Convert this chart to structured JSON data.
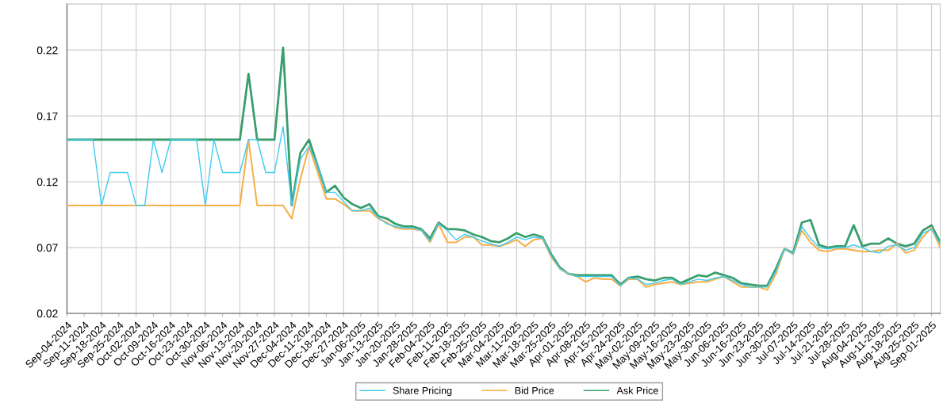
{
  "chart_data": {
    "type": "line",
    "categories": [
      "Sep-04-2024",
      null,
      "Sep-11-2024",
      null,
      "Sep-18-2024",
      null,
      "Sep-25-2024",
      null,
      "Oct-02-2024",
      null,
      "Oct-09-2024",
      null,
      "Oct-16-2024",
      null,
      "Oct-23-2024",
      null,
      "Oct-30-2024",
      null,
      "Nov-06-2024",
      null,
      "Nov-13-2024",
      null,
      "Nov-20-2024",
      null,
      "Nov-27-2024",
      null,
      "Dec-04-2024",
      null,
      "Dec-11-2024",
      null,
      "Dec-18-2024",
      null,
      "Dec-27-2024",
      null,
      "Jan-06-2025",
      null,
      "Jan-13-2025",
      null,
      "Jan-20-2025",
      null,
      "Jan-28-2025",
      null,
      "Feb-04-2025",
      null,
      "Feb-11-2025",
      null,
      "Feb-18-2025",
      null,
      "Feb-25-2025",
      null,
      "Mar-04-2025",
      null,
      "Mar-11-2025",
      null,
      "Mar-18-2025",
      null,
      "Mar-25-2025",
      null,
      "Apr-01-2025",
      null,
      "Apr-08-2025",
      null,
      "Apr-15-2025",
      null,
      "Apr-24-2025",
      null,
      "May-02-2025",
      null,
      "May-09-2025",
      null,
      "May-16-2025",
      null,
      "May-23-2025",
      null,
      "May-30-2025",
      null,
      "Jun-06-2025",
      null,
      "Jun-16-2025",
      null,
      "Jun-23-2025",
      null,
      "Jun-30-2025",
      null,
      "Jul-07-2025",
      null,
      "Jul-14-2025",
      null,
      "Jul-21-2025",
      null,
      "Jul-28-2025",
      null,
      "Aug-04-2025",
      null,
      "Aug-11-2025",
      null,
      "Aug-18-2025",
      null,
      "Aug-25-2025",
      null,
      "Sep-01-2025",
      null
    ],
    "series": [
      {
        "name": "Share Pricing",
        "color": "#3fcbf0",
        "values": [
          0.152,
          0.152,
          0.152,
          0.152,
          0.102,
          0.127,
          0.127,
          0.127,
          0.102,
          0.102,
          0.152,
          0.127,
          0.152,
          0.152,
          0.152,
          0.152,
          0.102,
          0.152,
          0.127,
          0.127,
          0.127,
          0.152,
          0.152,
          0.127,
          0.127,
          0.162,
          0.102,
          0.137,
          0.147,
          0.132,
          0.112,
          0.112,
          0.105,
          0.098,
          0.098,
          0.1,
          0.093,
          0.088,
          0.086,
          0.085,
          0.085,
          0.083,
          0.075,
          0.088,
          0.083,
          0.076,
          0.08,
          0.078,
          0.075,
          0.073,
          0.071,
          0.074,
          0.078,
          0.076,
          0.078,
          0.077,
          0.064,
          0.054,
          0.05,
          0.048,
          0.048,
          0.048,
          0.048,
          0.048,
          0.041,
          0.047,
          0.046,
          0.042,
          0.043,
          0.045,
          0.046,
          0.042,
          0.044,
          0.046,
          0.045,
          0.047,
          0.048,
          0.045,
          0.042,
          0.04,
          0.04,
          0.04,
          0.052,
          0.069,
          0.065,
          0.086,
          0.077,
          0.07,
          0.069,
          0.07,
          0.07,
          0.072,
          0.07,
          0.067,
          0.066,
          0.071,
          0.072,
          0.068,
          0.07,
          0.081,
          0.084,
          0.073
        ]
      },
      {
        "name": "Bid Price",
        "color": "#f7b04a",
        "values": [
          0.102,
          0.102,
          0.102,
          0.102,
          0.102,
          0.102,
          0.102,
          0.102,
          0.102,
          0.102,
          0.102,
          0.102,
          0.102,
          0.102,
          0.102,
          0.102,
          0.102,
          0.102,
          0.102,
          0.102,
          0.102,
          0.152,
          0.102,
          0.102,
          0.102,
          0.102,
          0.092,
          0.122,
          0.147,
          0.127,
          0.107,
          0.107,
          0.103,
          0.098,
          0.098,
          0.098,
          0.092,
          0.089,
          0.085,
          0.084,
          0.084,
          0.083,
          0.074,
          0.088,
          0.074,
          0.074,
          0.078,
          0.078,
          0.072,
          0.072,
          0.071,
          0.073,
          0.076,
          0.071,
          0.076,
          0.077,
          0.063,
          0.054,
          0.05,
          0.048,
          0.044,
          0.047,
          0.046,
          0.046,
          0.041,
          0.046,
          0.046,
          0.04,
          0.042,
          0.043,
          0.044,
          0.042,
          0.043,
          0.044,
          0.044,
          0.046,
          0.048,
          0.044,
          0.04,
          0.04,
          0.04,
          0.038,
          0.05,
          0.069,
          0.065,
          0.083,
          0.074,
          0.068,
          0.067,
          0.069,
          0.069,
          0.068,
          0.067,
          0.067,
          0.068,
          0.068,
          0.073,
          0.066,
          0.068,
          0.078,
          0.085,
          0.07
        ]
      },
      {
        "name": "Ask Price",
        "color": "#3a9e6e",
        "values": [
          0.152,
          0.152,
          0.152,
          0.152,
          0.152,
          0.152,
          0.152,
          0.152,
          0.152,
          0.152,
          0.152,
          0.152,
          0.152,
          0.152,
          0.152,
          0.152,
          0.152,
          0.152,
          0.152,
          0.152,
          0.152,
          0.202,
          0.152,
          0.152,
          0.152,
          0.222,
          0.102,
          0.142,
          0.152,
          0.132,
          0.112,
          0.117,
          0.108,
          0.103,
          0.1,
          0.103,
          0.094,
          0.092,
          0.088,
          0.086,
          0.086,
          0.084,
          0.077,
          0.089,
          0.084,
          0.084,
          0.083,
          0.08,
          0.078,
          0.075,
          0.074,
          0.077,
          0.081,
          0.078,
          0.08,
          0.078,
          0.065,
          0.055,
          0.05,
          0.049,
          0.049,
          0.049,
          0.049,
          0.049,
          0.042,
          0.047,
          0.048,
          0.046,
          0.045,
          0.047,
          0.047,
          0.043,
          0.046,
          0.049,
          0.048,
          0.051,
          0.049,
          0.047,
          0.043,
          0.042,
          0.041,
          0.041,
          0.054,
          0.069,
          0.066,
          0.089,
          0.091,
          0.072,
          0.07,
          0.071,
          0.071,
          0.087,
          0.071,
          0.073,
          0.073,
          0.077,
          0.073,
          0.071,
          0.073,
          0.083,
          0.087,
          0.074
        ]
      }
    ],
    "ylim": [
      0.02,
      0.255
    ],
    "yticks": [
      0.02,
      0.07,
      0.12,
      0.17,
      0.22
    ],
    "grid": true,
    "legend": "bottom",
    "marker": "none",
    "line_style": "solid"
  }
}
